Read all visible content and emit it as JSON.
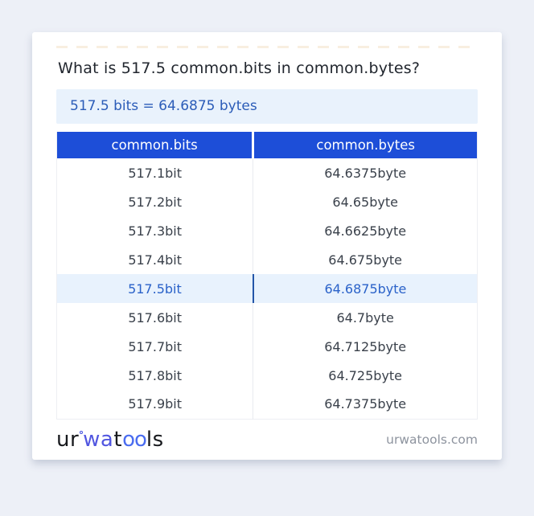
{
  "page": {
    "title": "What is 517.5 common.bits in common.bytes?",
    "answer": "517.5 bits = 64.6875 bytes"
  },
  "table": {
    "headers": [
      "common.bits",
      "common.bytes"
    ],
    "rows": [
      {
        "bits": "517.1bit",
        "bytes": "64.6375byte"
      },
      {
        "bits": "517.2bit",
        "bytes": "64.65byte"
      },
      {
        "bits": "517.3bit",
        "bytes": "64.6625byte"
      },
      {
        "bits": "517.4bit",
        "bytes": "64.675byte"
      },
      {
        "bits": "517.5bit",
        "bytes": "64.6875byte",
        "highlighted": true
      },
      {
        "bits": "517.6bit",
        "bytes": "64.7byte"
      },
      {
        "bits": "517.7bit",
        "bytes": "64.7125byte"
      },
      {
        "bits": "517.8bit",
        "bytes": "64.725byte"
      },
      {
        "bits": "517.9bit",
        "bytes": "64.7375byte"
      }
    ]
  },
  "footer": {
    "logo": {
      "part1": "ur",
      "part2": "wa",
      "part3": "t",
      "part4": "oo",
      "part5": "ls"
    },
    "site": "urwatools.com"
  },
  "colors": {
    "header_bg": "#1d4ed8",
    "highlight_bg": "#e8f2fd",
    "highlight_text": "#2a62c9",
    "highlight_divider": "#2456a8",
    "answer_bg": "#e9f2fc",
    "answer_text": "#2b5cb8",
    "logo_blue": "#5156e0",
    "page_bg": "#edf0f7"
  }
}
